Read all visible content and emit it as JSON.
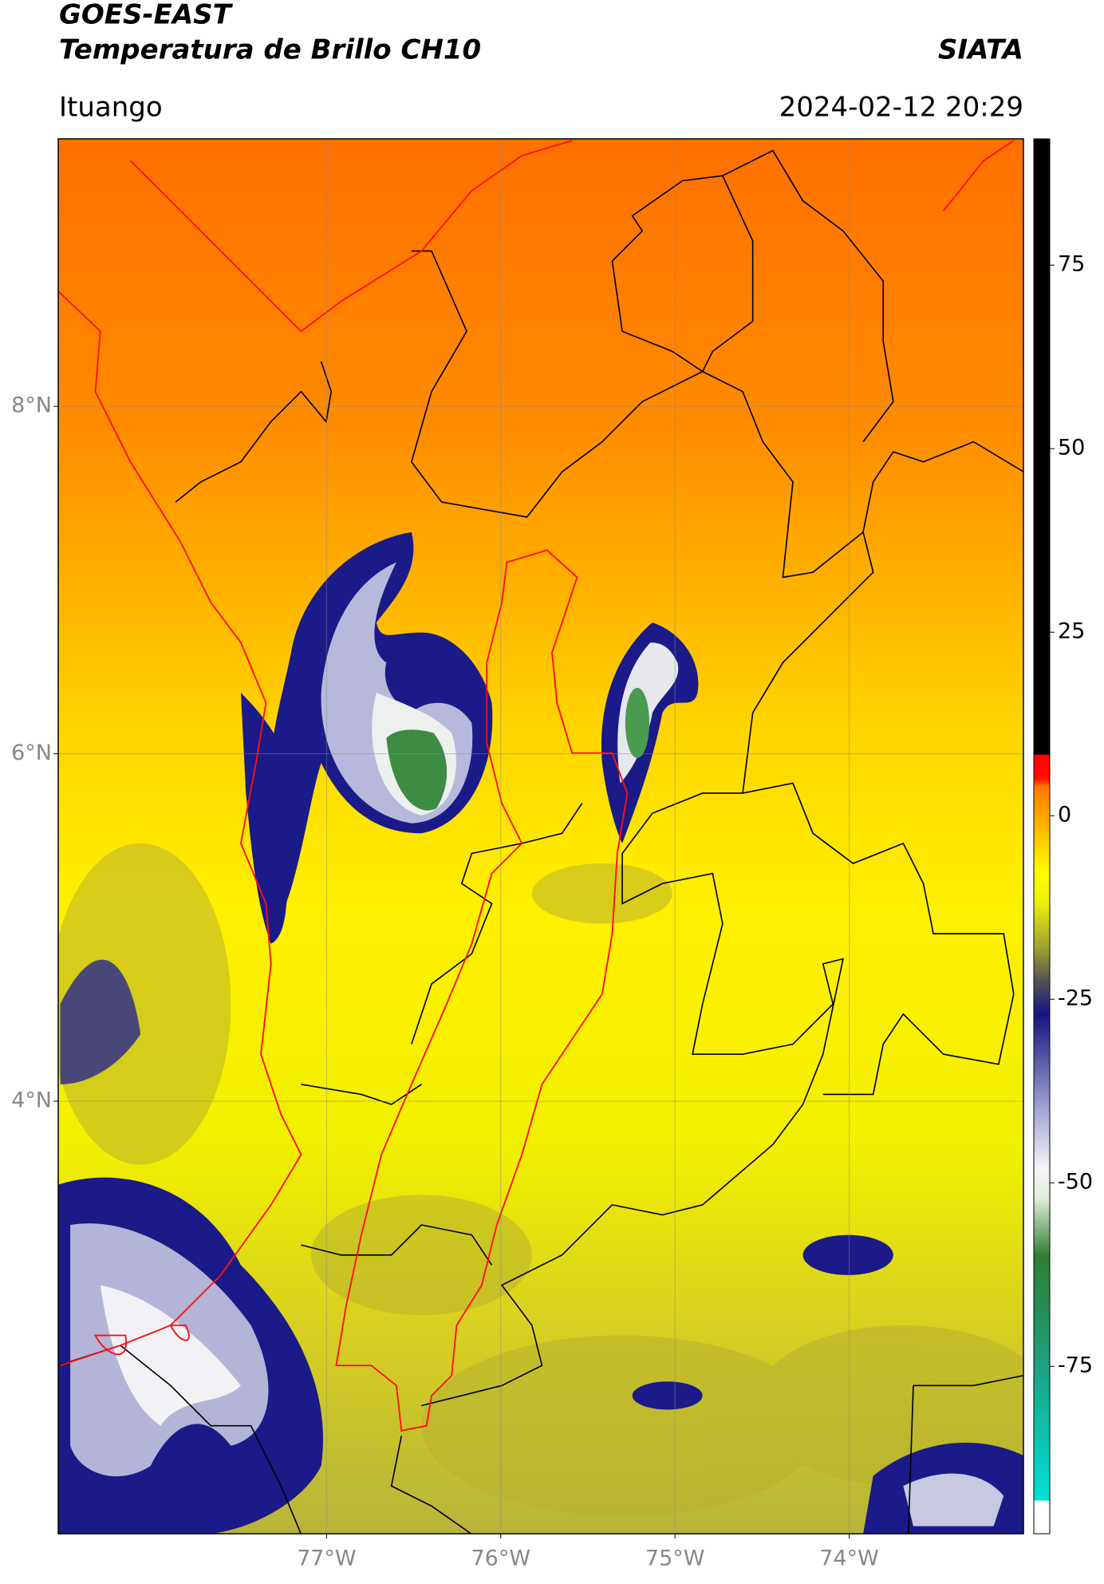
{
  "header": {
    "title": "GOES-EAST",
    "subtitle": "Temperatura de Brillo CH10",
    "source": "SIATA",
    "location": "Ituango",
    "datetime": "2024-02-12 20:29"
  },
  "chart_data": {
    "type": "map",
    "xlim": [
      -78.54,
      -73.0
    ],
    "ylim": [
      1.51,
      9.54
    ],
    "xticks": [
      {
        "value": -77,
        "label": "77°W"
      },
      {
        "value": -76,
        "label": "76°W"
      },
      {
        "value": -75,
        "label": "75°W"
      },
      {
        "value": -74,
        "label": "74°W"
      }
    ],
    "yticks": [
      {
        "value": 8,
        "label": "8°N"
      },
      {
        "value": 6,
        "label": "6°N"
      },
      {
        "value": 4,
        "label": "4°N"
      }
    ],
    "grid": true,
    "colorbar": {
      "lim": [
        -97.8,
        92.2
      ],
      "ticks": [
        75,
        50,
        25,
        0,
        -25,
        -50,
        -75
      ],
      "stops": [
        {
          "value": -97.8,
          "color": "#ffffff"
        },
        {
          "value": -93.3,
          "color": "#ffffff"
        },
        {
          "value": -93.2,
          "color": "#00e0d8"
        },
        {
          "value": -75,
          "color": "#1fa080"
        },
        {
          "value": -60,
          "color": "#2e7d32"
        },
        {
          "value": -52,
          "color": "#e4eedc"
        },
        {
          "value": -48,
          "color": "#f4f4f8"
        },
        {
          "value": -40,
          "color": "#a4a4d4"
        },
        {
          "value": -27,
          "color": "#141480"
        },
        {
          "value": -22,
          "color": "#5a5a50"
        },
        {
          "value": -18,
          "color": "#a0a030"
        },
        {
          "value": -12,
          "color": "#ecec10"
        },
        {
          "value": -8,
          "color": "#ffff00"
        },
        {
          "value": -3,
          "color": "#ffc800"
        },
        {
          "value": 4,
          "color": "#ff7800"
        },
        {
          "value": 5,
          "color": "#ff1000"
        },
        {
          "value": 8.3,
          "color": "#ff0000"
        },
        {
          "value": 8.4,
          "color": "#000000"
        },
        {
          "value": 92.2,
          "color": "#000000"
        }
      ]
    }
  }
}
